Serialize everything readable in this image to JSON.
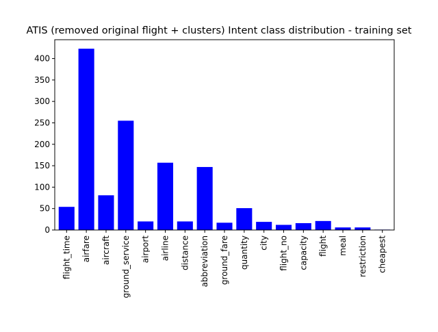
{
  "chart_data": {
    "type": "bar",
    "title": "ATIS (removed original flight + clusters) Intent class distribution - training set",
    "xlabel": "",
    "ylabel": "",
    "categories": [
      "flight_time",
      "airfare",
      "aircraft",
      "ground_service",
      "airport",
      "airline",
      "distance",
      "abbreviation",
      "ground_fare",
      "quantity",
      "city",
      "flight_no",
      "capacity",
      "flight",
      "meal",
      "restriction",
      "cheapest"
    ],
    "values": [
      54,
      423,
      81,
      255,
      20,
      157,
      20,
      147,
      17,
      51,
      19,
      12,
      16,
      21,
      6,
      6,
      1
    ],
    "ylim": [
      0,
      444
    ],
    "yticks": [
      0,
      50,
      100,
      150,
      200,
      250,
      300,
      350,
      400
    ],
    "bar_color": "#0000ff",
    "grid": false
  }
}
